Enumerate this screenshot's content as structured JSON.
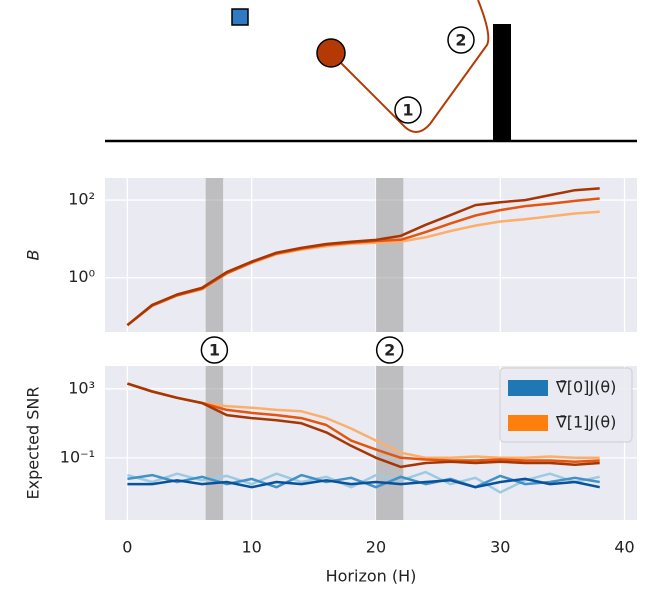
{
  "diagram": {
    "labels": [
      "1",
      "2"
    ]
  },
  "chart_data": [
    {
      "type": "line",
      "ylabel": "B",
      "yscale": "log",
      "grid": true,
      "show_xtick_labels": false,
      "xlim": [
        -1.8,
        41
      ],
      "xticks": [
        0,
        10,
        20,
        30,
        40
      ],
      "ylim": [
        0.04,
        370
      ],
      "yticks": [
        {
          "value": 1,
          "label": "10⁰"
        },
        {
          "value": 100,
          "label": "10²"
        }
      ],
      "highlight_bands": [
        {
          "label": "1",
          "range": [
            6.3,
            7.7
          ]
        },
        {
          "label": "2",
          "range": [
            20,
            22.2
          ]
        }
      ],
      "x": [
        0,
        2,
        4,
        6,
        8,
        10,
        12,
        14,
        16,
        18,
        20,
        22,
        24,
        26,
        28,
        30,
        32,
        34,
        36,
        38
      ],
      "series": [
        {
          "color": "#fdae6b",
          "values": [
            0.06,
            0.19,
            0.35,
            0.5,
            1.3,
            2.4,
            4,
            5.3,
            6.5,
            7.5,
            8,
            8.5,
            11,
            16,
            22,
            28,
            32,
            38,
            45,
            50
          ]
        },
        {
          "color": "#e6550d",
          "values": [
            0.06,
            0.19,
            0.35,
            0.52,
            1.3,
            2.5,
            4.2,
            5.6,
            7,
            8,
            8.8,
            9.5,
            15,
            25,
            40,
            55,
            70,
            80,
            95,
            110
          ]
        },
        {
          "color": "#a63603",
          "values": [
            0.06,
            0.2,
            0.37,
            0.55,
            1.4,
            2.6,
            4.4,
            5.9,
            7.4,
            8.4,
            9.4,
            12,
            23,
            41,
            74,
            88,
            100,
            134,
            180,
            200
          ]
        }
      ]
    },
    {
      "type": "line",
      "ylabel": "Expected SNR",
      "xlabel": "Horizon (H)",
      "yscale": "log",
      "grid": true,
      "show_xtick_labels": true,
      "xlim": [
        -1.8,
        41
      ],
      "xticks": [
        0,
        10,
        20,
        30,
        40
      ],
      "ylim": [
        2.5e-05,
        21000
      ],
      "yticks": [
        {
          "value": 0.1,
          "label": "10⁻¹"
        },
        {
          "value": 1000,
          "label": "10³"
        }
      ],
      "highlight_bands": [
        {
          "label": "1",
          "range": [
            6.3,
            7.7
          ]
        },
        {
          "label": "2",
          "range": [
            20,
            22.2
          ]
        }
      ],
      "legend": [
        {
          "name": "∇̄[0]J(θ)",
          "color": "#1f77b4"
        },
        {
          "name": "∇̄[1]J(θ)",
          "color": "#ff7f0e"
        }
      ],
      "legend_position": "upper right",
      "x": [
        0,
        2,
        4,
        6,
        8,
        10,
        12,
        14,
        16,
        18,
        20,
        22,
        24,
        26,
        28,
        30,
        32,
        34,
        36,
        38
      ],
      "series": [
        {
          "color": "#9ecae1",
          "values": [
            0.01,
            0.004,
            0.012,
            0.005,
            0.009,
            0.003,
            0.012,
            0.004,
            0.008,
            0.002,
            0.01,
            0.005,
            0.015,
            0.003,
            0.007,
            0.001,
            0.005,
            0.012,
            0.004,
            0.008
          ]
        },
        {
          "color": "#4292c6",
          "values": [
            0.006,
            0.01,
            0.004,
            0.008,
            0.003,
            0.006,
            0.002,
            0.01,
            0.004,
            0.007,
            0.002,
            0.008,
            0.003,
            0.006,
            0.002,
            0.009,
            0.003,
            0.004,
            0.007,
            0.004
          ]
        },
        {
          "color": "#08519c",
          "values": [
            0.003,
            0.003,
            0.005,
            0.003,
            0.004,
            0.002,
            0.004,
            0.003,
            0.005,
            0.003,
            0.004,
            0.003,
            0.004,
            0.005,
            0.002,
            0.004,
            0.006,
            0.003,
            0.004,
            0.002
          ]
        },
        {
          "color": "#fdae6b",
          "values": [
            2000,
            700,
            300,
            150,
            100,
            80,
            60,
            50,
            20,
            5,
            1,
            0.2,
            0.1,
            0.1,
            0.12,
            0.1,
            0.1,
            0.12,
            0.1,
            0.1
          ]
        },
        {
          "color": "#e6550d",
          "values": [
            2000,
            700,
            300,
            150,
            60,
            40,
            30,
            20,
            8,
            1,
            0.3,
            0.1,
            0.08,
            0.07,
            0.07,
            0.08,
            0.07,
            0.07,
            0.06,
            0.07
          ]
        },
        {
          "color": "#a63603",
          "values": [
            2000,
            700,
            300,
            150,
            30,
            20,
            15,
            10,
            3,
            0.5,
            0.1,
            0.03,
            0.05,
            0.06,
            0.05,
            0.06,
            0.05,
            0.05,
            0.04,
            0.05
          ]
        }
      ]
    }
  ]
}
